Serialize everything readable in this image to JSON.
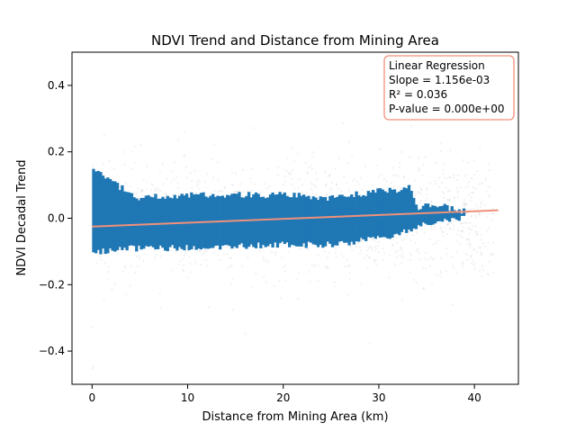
{
  "chart_data": {
    "type": "scatter",
    "title": "NDVI Trend and Distance from Mining Area",
    "xlabel": "Distance from Mining Area (km)",
    "ylabel": "NDVI Decadal Trend",
    "xlim": [
      -2.1,
      44.6
    ],
    "ylim": [
      -0.5,
      0.5
    ],
    "xticks": [
      0,
      10,
      20,
      30,
      40
    ],
    "yticks": [
      -0.4,
      -0.2,
      0.0,
      0.2,
      0.4
    ],
    "xtick_labels": [
      "0",
      "10",
      "20",
      "30",
      "40"
    ],
    "ytick_labels": [
      "−0.4",
      "−0.2",
      "0.0",
      "0.2",
      "0.4"
    ],
    "grid": false,
    "legend_position": "top-right",
    "series": [
      {
        "kind": "scatter-dense",
        "color": "#1f77b4",
        "core_band": [
          {
            "x": 0,
            "lower": -0.1,
            "upper": 0.15
          },
          {
            "x": 1,
            "lower": -0.1,
            "upper": 0.13
          },
          {
            "x": 4,
            "lower": -0.09,
            "upper": 0.07
          },
          {
            "x": 5,
            "lower": -0.09,
            "upper": 0.06
          },
          {
            "x": 10,
            "lower": -0.09,
            "upper": 0.07
          },
          {
            "x": 20,
            "lower": -0.08,
            "upper": 0.07
          },
          {
            "x": 25,
            "lower": -0.08,
            "upper": 0.06
          },
          {
            "x": 30,
            "lower": -0.06,
            "upper": 0.08
          },
          {
            "x": 33,
            "lower": -0.04,
            "upper": 0.09
          },
          {
            "x": 34,
            "lower": -0.02,
            "upper": 0.03
          },
          {
            "x": 36,
            "lower": -0.01,
            "upper": 0.04
          },
          {
            "x": 39,
            "lower": 0.0,
            "upper": 0.02
          }
        ]
      },
      {
        "kind": "scatter-outliers",
        "color": "#888888",
        "x_range": [
          0,
          42
        ],
        "y_range": [
          -0.48,
          0.3
        ]
      },
      {
        "kind": "regression-line",
        "color": "#f0907a",
        "x": [
          0,
          42.5
        ],
        "y": [
          -0.025,
          0.024
        ]
      }
    ],
    "annotation": {
      "lines": [
        "Linear Regression",
        "Slope = 1.156e-03",
        "R² = 0.036",
        "P-value = 0.000e+00"
      ],
      "border_color": "#f0907a"
    }
  }
}
